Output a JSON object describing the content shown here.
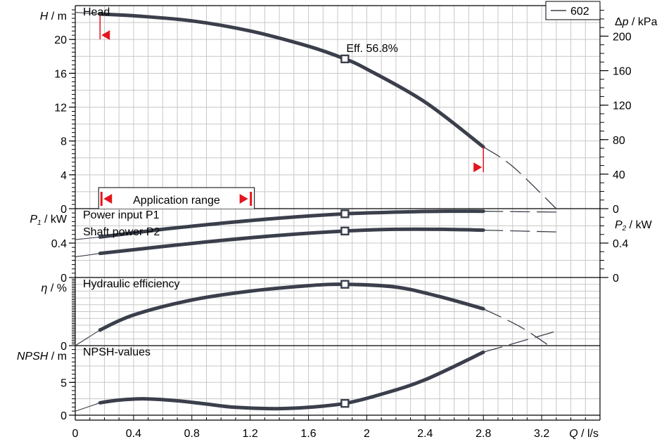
{
  "chart_data": {
    "type": "line",
    "x_axis": {
      "label_symbol": "Q",
      "label_unit": " / l/s",
      "range": [
        0,
        3.6
      ],
      "ticks": [
        0,
        0.4,
        0.8,
        1.2,
        1.6,
        2,
        2.4,
        2.8,
        3.2
      ],
      "tick_labels": [
        "0",
        "0.4",
        "0.8",
        "1.2",
        "1.6",
        "2",
        "2.4",
        "2.8",
        "3.2"
      ]
    },
    "legend": {
      "label": "602",
      "placement": "top-right"
    },
    "duty_point": {
      "q": 1.85,
      "efficiency_label": "Eff.  56.8%"
    },
    "application_range": {
      "label": "Application range",
      "q_min": 0.17,
      "q_max": 2.8
    },
    "panels": [
      {
        "id": "head",
        "title": "Head",
        "y_label_symbol": "H",
        "y_label_unit": " / m",
        "y_range": [
          0,
          24
        ],
        "y_ticks": [
          0,
          4,
          8,
          12,
          16,
          20
        ],
        "y_tick_labels": [
          "0",
          "4",
          "8",
          "12",
          "16",
          "20"
        ],
        "right_label_prefix": "Δ",
        "right_label_symbol": "p",
        "right_label_unit": " / kPa",
        "right_range": [
          0,
          235.4
        ],
        "right_ticks": [
          0,
          40,
          80,
          120,
          160,
          200
        ],
        "right_tick_labels": [
          "0",
          "40",
          "80",
          "120",
          "160",
          "200"
        ],
        "series": [
          {
            "name": "602",
            "q": [
              0.17,
              0.4,
              0.8,
              1.2,
              1.6,
              1.85,
              2.0,
              2.4,
              2.8
            ],
            "values": [
              23.0,
              22.8,
              22.2,
              21.0,
              19.2,
              17.7,
              16.5,
              12.6,
              7.3
            ],
            "leading_q": [
              0,
              0.17
            ],
            "leading_values": [
              23.2,
              23.0
            ],
            "extension_q": [
              2.8,
              3.0,
              3.3
            ],
            "extension_values": [
              7.3,
              5.0,
              0
            ]
          }
        ]
      },
      {
        "id": "power",
        "title": "Power input P1",
        "title2": "Shaft power P2",
        "y_label_symbol": "P",
        "y_label_sub": "1",
        "y_label_unit": " / kW",
        "y_range": [
          0,
          0.8
        ],
        "y_ticks": [
          0,
          0.4
        ],
        "y_tick_labels": [
          "0",
          "0.4"
        ],
        "right_label_symbol": "P",
        "right_label_sub": "2",
        "right_label_unit": " / kW",
        "right_range": [
          0,
          0.8
        ],
        "right_ticks": [
          0,
          0.4
        ],
        "right_tick_labels": [
          "0",
          "0.4"
        ],
        "series": [
          {
            "name": "P1",
            "q": [
              0.17,
              0.6,
              1.0,
              1.4,
              1.85,
              2.2,
              2.5,
              2.8
            ],
            "values": [
              0.47,
              0.56,
              0.63,
              0.69,
              0.74,
              0.76,
              0.77,
              0.77
            ],
            "leading_q": [
              0,
              0.17
            ],
            "leading_values": [
              0.44,
              0.47
            ],
            "extension_q": [
              2.8,
              3.3
            ],
            "extension_values": [
              0.77,
              0.76
            ]
          },
          {
            "name": "P2",
            "q": [
              0.17,
              0.6,
              1.0,
              1.4,
              1.85,
              2.2,
              2.5,
              2.8
            ],
            "values": [
              0.28,
              0.36,
              0.43,
              0.49,
              0.54,
              0.56,
              0.56,
              0.55
            ],
            "leading_q": [
              0,
              0.17
            ],
            "leading_values": [
              0.24,
              0.28
            ],
            "extension_q": [
              2.8,
              3.3
            ],
            "extension_values": [
              0.55,
              0.53
            ]
          }
        ]
      },
      {
        "id": "efficiency",
        "title": "Hydraulic efficiency",
        "y_label_symbol": "η",
        "y_label_unit": " / %",
        "y_range": [
          0,
          100
        ],
        "y_ticks": [
          0
        ],
        "y_tick_labels": [
          "0"
        ],
        "series": [
          {
            "name": "eta",
            "q": [
              0.17,
              0.4,
              0.8,
              1.2,
              1.6,
              1.85,
              2.2,
              2.5,
              2.8
            ],
            "values": [
              23.0,
              45.0,
              67.0,
              80.0,
              88.0,
              90.0,
              86.0,
              72.0,
              54.0
            ],
            "leading_q": [
              0,
              0.17
            ],
            "leading_values": [
              0,
              23.0
            ],
            "extension_q": [
              2.8,
              3.05,
              3.25
            ],
            "extension_values": [
              54.0,
              28.0,
              0
            ]
          }
        ]
      },
      {
        "id": "npsh",
        "title": "NPSH-values",
        "y_label_symbol": "NPSH",
        "y_label_unit": " / m",
        "y_range": [
          0,
          10.6
        ],
        "y_ticks": [
          0,
          5
        ],
        "y_tick_labels": [
          "0",
          "5"
        ],
        "series": [
          {
            "name": "NPSH",
            "q": [
              0.17,
              0.3,
              0.48,
              0.7,
              0.9,
              1.1,
              1.38,
              1.6,
              1.85,
              2.1,
              2.4,
              2.8
            ],
            "values": [
              1.9,
              2.3,
              2.5,
              2.2,
              1.7,
              1.2,
              1.0,
              1.2,
              1.8,
              3.2,
              5.4,
              9.6
            ],
            "leading_q": [
              0,
              0.17
            ],
            "leading_values": [
              0.6,
              1.9
            ],
            "extension_q": [
              2.8,
              3.3
            ],
            "extension_values": [
              9.6,
              12.8
            ]
          }
        ]
      }
    ]
  }
}
